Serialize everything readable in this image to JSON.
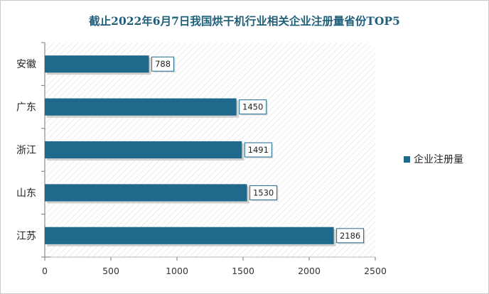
{
  "chart_data": {
    "type": "bar",
    "orientation": "horizontal",
    "title": "截止2022年6月7日我国烘干机行业相关企业注册量省份TOP5",
    "categories": [
      "安徽",
      "广东",
      "浙江",
      "山东",
      "江苏"
    ],
    "series": [
      {
        "name": "企业注册量",
        "values": [
          788,
          1450,
          1491,
          1530,
          2186
        ]
      }
    ],
    "xlim": [
      0,
      2500
    ],
    "xticks": [
      "0",
      "500",
      "1000",
      "1500",
      "2000",
      "2500"
    ],
    "legend_position": "right",
    "grid": false,
    "colors": {
      "bar": "#1f6a8c",
      "title": "#1f5f7a"
    }
  }
}
